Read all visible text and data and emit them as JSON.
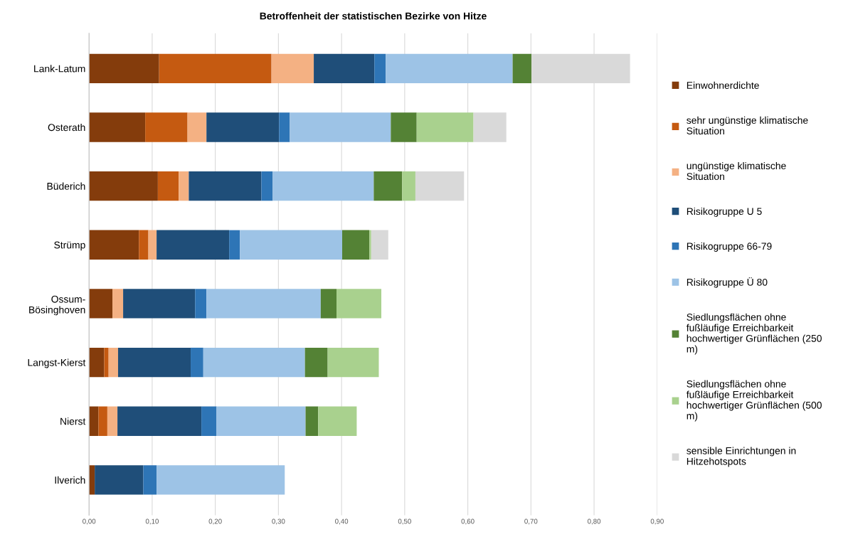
{
  "chart_data": {
    "type": "bar",
    "orientation": "horizontal",
    "stacked": true,
    "title": "Betroffenheit der statistischen Bezirke von Hitze",
    "categories": [
      "Lank-Latum",
      "Osterath",
      "Büderich",
      "Strümp",
      "Ossum-\nBösinghoven",
      "Langst-Kierst",
      "Nierst",
      "Ilverich"
    ],
    "series": [
      {
        "name": "Einwohnerdichte",
        "color": "#843c0c",
        "values": [
          0.111,
          0.089,
          0.109,
          0.079,
          0.037,
          0.024,
          0.015,
          0.009
        ]
      },
      {
        "name": "sehr ungünstige klimatische Situation",
        "color": "#c55a11",
        "values": [
          0.178,
          0.067,
          0.033,
          0.015,
          null,
          0.007,
          0.014,
          null
        ]
      },
      {
        "name": "ungünstige klimatische Situation",
        "color": "#f4b183",
        "values": [
          0.067,
          0.03,
          0.016,
          0.013,
          0.017,
          0.015,
          0.016,
          null
        ]
      },
      {
        "name": "Risikogruppe U 5",
        "color": "#1f4e79",
        "values": [
          0.096,
          0.115,
          0.115,
          0.115,
          0.114,
          0.115,
          0.133,
          0.077
        ]
      },
      {
        "name": "Risikogruppe 66-79",
        "color": "#2e75b6",
        "values": [
          0.018,
          0.017,
          0.018,
          0.017,
          0.018,
          0.02,
          0.024,
          0.021
        ]
      },
      {
        "name": "Risikogruppe Ü 80",
        "color": "#9dc3e6",
        "values": [
          0.201,
          0.16,
          0.16,
          0.162,
          0.181,
          0.161,
          0.141,
          0.203
        ]
      },
      {
        "name": "Siedlungsflächen ohne fußläufige Erreichbarkeit hochwertiger Grünflächen (250 m)",
        "color": "#548235",
        "values": [
          0.03,
          0.041,
          0.045,
          0.043,
          0.025,
          0.036,
          0.02,
          null
        ]
      },
      {
        "name": "Siedlungsflächen ohne fußläufige Erreichbarkeit hochwertiger Grünflächen (500 m)",
        "color": "#a9d18e",
        "values": [
          null,
          0.09,
          0.021,
          0.003,
          0.071,
          0.081,
          0.061,
          null
        ]
      },
      {
        "name": "sensible Einrichtungen in Hitzehotspots",
        "color": "#d9d9d9",
        "values": [
          0.156,
          0.052,
          0.077,
          0.027,
          null,
          null,
          null,
          null
        ]
      }
    ],
    "xlim": [
      0,
      0.9
    ],
    "xticks": [
      {
        "value": 0,
        "label": "0,00"
      },
      {
        "value": 0.1,
        "label": "0,10"
      },
      {
        "value": 0.2,
        "label": "0,20"
      },
      {
        "value": 0.3,
        "label": "0,30"
      },
      {
        "value": 0.4,
        "label": "0,40"
      },
      {
        "value": 0.5,
        "label": "0,50"
      },
      {
        "value": 0.6,
        "label": "0,60"
      },
      {
        "value": 0.7,
        "label": "0,70"
      },
      {
        "value": 0.8,
        "label": "0,80"
      },
      {
        "value": 0.9,
        "label": "0,90"
      }
    ],
    "grid": "x",
    "legend": "right"
  }
}
